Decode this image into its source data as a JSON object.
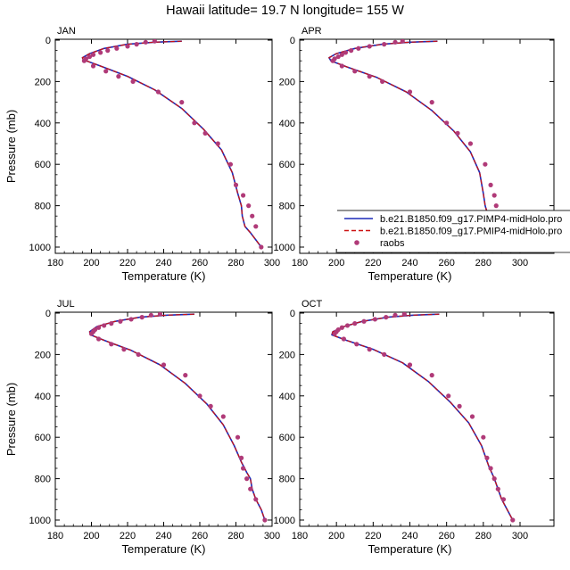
{
  "title": "Hawaii  latitude= 19.7 N longitude= 155 W",
  "colors": {
    "model_blue": "#1c2ab8",
    "model_red": "#cc1111",
    "raobs": "#b03a78"
  },
  "legend": {
    "items": [
      {
        "label": "b.e21.B1850.f09_g17.PIMP4-midHolo.pro",
        "style": "solid-line",
        "color": "#1c2ab8"
      },
      {
        "label": "b.e21.B1850.f09_g17.PMIP4-midHolo.pro",
        "style": "dashed-line",
        "color": "#cc1111"
      },
      {
        "label": "raobs",
        "style": "marker",
        "color": "#b03a78"
      }
    ]
  },
  "chart_data": [
    {
      "type": "line",
      "panel": "JAN",
      "xlabel": "Temperature (K)",
      "ylabel": "Pressure (mb)",
      "xlim": [
        180,
        300
      ],
      "ylim": [
        1000,
        0
      ],
      "xticks": [
        180,
        200,
        220,
        240,
        260,
        280,
        300
      ],
      "yticks": [
        0,
        200,
        400,
        600,
        800,
        1000
      ],
      "series": [
        {
          "style": "solid",
          "color": "#1c2ab8",
          "x": [
            250,
            235,
            220,
            207,
            199,
            195,
            195.5,
            205,
            220,
            235,
            250,
            262,
            272,
            278,
            281,
            283,
            283.5,
            285,
            288,
            291,
            294
          ],
          "y": [
            5,
            10,
            20,
            40,
            65,
            85,
            95,
            125,
            175,
            240,
            330,
            430,
            530,
            640,
            740,
            800,
            850,
            900,
            930,
            965,
            1000
          ]
        },
        {
          "style": "dashed",
          "color": "#cc1111",
          "x": [
            250,
            235,
            220,
            207,
            199,
            195,
            195.5,
            205,
            220,
            235,
            250,
            262,
            272,
            278,
            281,
            283,
            283.5,
            285,
            288,
            291,
            294
          ],
          "y": [
            5,
            10,
            20,
            40,
            65,
            85,
            95,
            125,
            175,
            240,
            330,
            430,
            530,
            640,
            740,
            800,
            850,
            900,
            930,
            965,
            1000
          ]
        },
        {
          "style": "markers",
          "color": "#b03a78",
          "x": [
            235,
            230,
            225,
            220,
            214,
            209,
            205,
            201,
            199,
            197,
            196,
            201,
            208,
            215,
            223,
            237,
            250,
            257,
            263,
            270,
            277,
            280,
            284,
            287,
            289,
            291,
            294
          ],
          "y": [
            5,
            10,
            20,
            30,
            40,
            50,
            60,
            70,
            80,
            90,
            100,
            125,
            150,
            175,
            200,
            250,
            300,
            400,
            450,
            500,
            600,
            700,
            750,
            800,
            850,
            900,
            1000
          ]
        }
      ]
    },
    {
      "type": "line",
      "panel": "APR",
      "xlabel": "Temperature (K)",
      "ylabel": "Pressure (mb)",
      "xlim": [
        180,
        300
      ],
      "ylim": [
        1000,
        0
      ],
      "xticks": [
        180,
        200,
        220,
        240,
        260,
        280,
        300
      ],
      "yticks": [
        0,
        200,
        400,
        600,
        800,
        1000
      ],
      "series": [
        {
          "style": "solid",
          "color": "#1c2ab8",
          "x": [
            255,
            240,
            225,
            210,
            200,
            196,
            197,
            206,
            222,
            238,
            252,
            264,
            273,
            278,
            280,
            281,
            283,
            287,
            292,
            295
          ],
          "y": [
            5,
            10,
            20,
            40,
            65,
            85,
            100,
            130,
            180,
            250,
            340,
            440,
            540,
            640,
            740,
            800,
            860,
            910,
            960,
            1000
          ]
        },
        {
          "style": "dashed",
          "color": "#cc1111",
          "x": [
            255,
            240,
            225,
            210,
            200,
            196,
            197,
            206,
            222,
            238,
            252,
            264,
            273,
            278,
            280,
            281,
            283,
            287,
            292,
            295
          ],
          "y": [
            5,
            10,
            20,
            40,
            65,
            85,
            100,
            130,
            180,
            250,
            340,
            440,
            540,
            640,
            740,
            800,
            860,
            910,
            960,
            1000
          ]
        },
        {
          "style": "markers",
          "color": "#b03a78",
          "x": [
            236,
            232,
            226,
            218,
            212,
            208,
            205,
            203,
            201,
            199,
            198,
            203,
            210,
            218,
            225,
            240,
            252,
            260,
            266,
            273,
            281,
            284,
            286,
            287,
            288,
            290,
            295
          ],
          "y": [
            5,
            10,
            20,
            30,
            40,
            50,
            60,
            70,
            80,
            90,
            100,
            125,
            150,
            175,
            200,
            250,
            300,
            400,
            450,
            500,
            600,
            700,
            750,
            800,
            850,
            900,
            1000
          ]
        }
      ]
    },
    {
      "type": "line",
      "panel": "JUL",
      "xlabel": "Temperature (K)",
      "ylabel": "Pressure (mb)",
      "xlim": [
        180,
        300
      ],
      "ylim": [
        1000,
        0
      ],
      "xticks": [
        180,
        200,
        220,
        240,
        260,
        280,
        300
      ],
      "yticks": [
        0,
        200,
        400,
        600,
        800,
        1000
      ],
      "series": [
        {
          "style": "solid",
          "color": "#1c2ab8",
          "x": [
            257,
            242,
            227,
            213,
            203,
            199,
            199.5,
            208,
            222,
            238,
            252,
            264,
            273,
            279,
            283,
            286,
            288,
            289,
            291,
            294,
            296
          ],
          "y": [
            5,
            10,
            20,
            40,
            65,
            90,
            105,
            135,
            180,
            250,
            340,
            440,
            540,
            640,
            720,
            770,
            800,
            850,
            900,
            950,
            1000
          ]
        },
        {
          "style": "dashed",
          "color": "#cc1111",
          "x": [
            257,
            242,
            227,
            213,
            203,
            199,
            199.5,
            208,
            222,
            238,
            252,
            264,
            273,
            279,
            283,
            286,
            288,
            289,
            291,
            294,
            296
          ],
          "y": [
            5,
            10,
            20,
            40,
            65,
            90,
            105,
            135,
            180,
            250,
            340,
            440,
            540,
            640,
            720,
            770,
            800,
            850,
            900,
            950,
            1000
          ]
        },
        {
          "style": "markers",
          "color": "#b03a78",
          "x": [
            238,
            233,
            228,
            222,
            216,
            211,
            207,
            204,
            202,
            201,
            200,
            204,
            211,
            218,
            226,
            240,
            252,
            260,
            266,
            273,
            281,
            283,
            284,
            286,
            288,
            291,
            296
          ],
          "y": [
            5,
            10,
            20,
            30,
            40,
            50,
            60,
            70,
            80,
            90,
            100,
            125,
            150,
            175,
            200,
            250,
            300,
            400,
            450,
            500,
            600,
            700,
            750,
            800,
            850,
            900,
            1000
          ]
        }
      ]
    },
    {
      "type": "line",
      "panel": "OCT",
      "xlabel": "Temperature (K)",
      "ylabel": "Pressure (mb)",
      "xlim": [
        180,
        300
      ],
      "ylim": [
        1000,
        0
      ],
      "xticks": [
        180,
        200,
        220,
        240,
        260,
        280,
        300
      ],
      "yticks": [
        0,
        200,
        400,
        600,
        800,
        1000
      ],
      "series": [
        {
          "style": "solid",
          "color": "#1c2ab8",
          "x": [
            256,
            242,
            228,
            214,
            204,
            198,
            197.5,
            205,
            220,
            236,
            250,
            262,
            272,
            279,
            283,
            286,
            288,
            290,
            293,
            296
          ],
          "y": [
            5,
            10,
            20,
            40,
            65,
            90,
            105,
            130,
            175,
            240,
            330,
            430,
            530,
            640,
            740,
            800,
            850,
            900,
            950,
            1000
          ]
        },
        {
          "style": "dashed",
          "color": "#cc1111",
          "x": [
            256,
            242,
            228,
            214,
            204,
            198,
            197.5,
            205,
            220,
            236,
            250,
            262,
            272,
            279,
            283,
            286,
            288,
            290,
            293,
            296
          ],
          "y": [
            5,
            10,
            20,
            40,
            65,
            90,
            105,
            130,
            175,
            240,
            330,
            430,
            530,
            640,
            740,
            800,
            850,
            900,
            950,
            1000
          ]
        },
        {
          "style": "markers",
          "color": "#b03a78",
          "x": [
            237,
            232,
            227,
            221,
            215,
            210,
            206,
            203,
            201,
            200,
            199,
            204,
            211,
            218,
            226,
            240,
            252,
            261,
            267,
            274,
            280,
            282,
            284,
            286,
            288,
            291,
            296
          ],
          "y": [
            5,
            10,
            20,
            30,
            40,
            50,
            60,
            70,
            80,
            90,
            100,
            125,
            150,
            175,
            200,
            250,
            300,
            400,
            450,
            500,
            600,
            700,
            750,
            800,
            850,
            900,
            1000
          ]
        }
      ]
    }
  ]
}
